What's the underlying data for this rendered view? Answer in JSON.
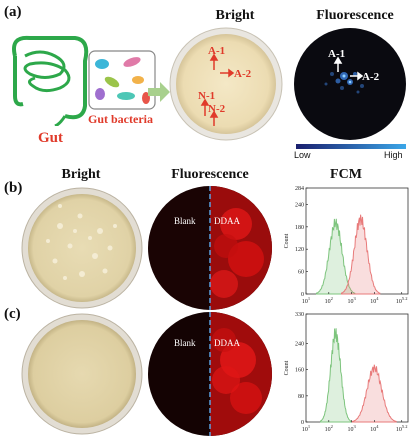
{
  "panel_a": {
    "label": "(a)",
    "gut_label": "Gut",
    "bacteria_label": "Gut bacteria",
    "bright_heading": "Bright",
    "fluor_heading": "Fluorescence",
    "bright_dish_labels": [
      "A-1",
      "A-2",
      "N-1",
      "N-2"
    ],
    "fluor_dish_labels": [
      "A-1",
      "A-2"
    ],
    "colorbar_low": "Low",
    "colorbar_high": "High"
  },
  "panel_b": {
    "label": "(b)",
    "bright_heading": "Bright",
    "fluor_heading": "Fluorescence",
    "fcm_heading": "FCM",
    "fluor_left": "Blank",
    "fluor_right": "DDAA"
  },
  "panel_c": {
    "label": "(c)",
    "fluor_left": "Blank",
    "fluor_right": "DDAA"
  },
  "colors": {
    "gut_green": "#2da84a",
    "label_red": "#e03a2a",
    "blank_green": "#7dc47d",
    "ddaa_red": "#e87a7a",
    "divider_blue": "#5aa0e0"
  },
  "chart_data": [
    {
      "type": "area",
      "title": "FCM",
      "xlabel": "",
      "ylabel": "Count",
      "x_scale": "log",
      "xlim": [
        10,
        300000
      ],
      "xtick_labels": [
        "10^1",
        "10^2",
        "10^3",
        "10^4",
        "10^5.2"
      ],
      "ylim": [
        0,
        284
      ],
      "ytick_labels": [
        "0",
        "60",
        "120",
        "180",
        "240",
        "284"
      ],
      "series": [
        {
          "name": "",
          "color": "#7dc47d",
          "peak_x": 200,
          "peak_y": 190,
          "width_decades": 0.28
        },
        {
          "name": "",
          "color": "#e87a7a",
          "peak_x": 2500,
          "peak_y": 200,
          "width_decades": 0.28
        }
      ]
    },
    {
      "type": "area",
      "title": "",
      "xlabel": "",
      "ylabel": "Count",
      "x_scale": "log",
      "xlim": [
        10,
        300000
      ],
      "xtick_labels": [
        "10^1",
        "10^2",
        "10^3",
        "10^4",
        "10^5.2"
      ],
      "ylim": [
        0,
        330
      ],
      "ytick_labels": [
        "0",
        "80",
        "160",
        "240",
        "330"
      ],
      "series": [
        {
          "name": "",
          "color": "#7dc47d",
          "peak_x": 200,
          "peak_y": 270,
          "width_decades": 0.22
        },
        {
          "name": "",
          "color": "#e87a7a",
          "peak_x": 10000,
          "peak_y": 165,
          "width_decades": 0.32
        }
      ]
    }
  ]
}
